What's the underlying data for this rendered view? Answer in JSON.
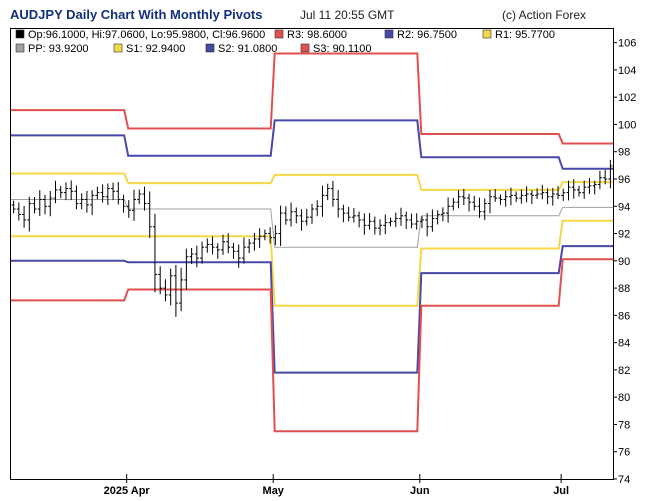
{
  "header": {
    "title": "AUDJPY Daily Chart With Monthly Pivots",
    "timestamp": "Jul 11 20:55 GMT",
    "credit": "(c) Action Forex"
  },
  "legend": [
    {
      "label": "Op:96.1000, Hi:97.0600, Lo:95.9800, Cl:96.9600",
      "color": "#000000"
    },
    {
      "label": "R3: 98.6000",
      "color": "#e05050"
    },
    {
      "label": "R2: 96.7500",
      "color": "#4848a8"
    },
    {
      "label": "R1: 95.7700",
      "color": "#f5d846"
    },
    {
      "label": "PP: 93.9200",
      "color": "#a0a0a0"
    },
    {
      "label": "S1: 92.9400",
      "color": "#f5d846"
    },
    {
      "label": "S2: 91.0800",
      "color": "#4848a8"
    },
    {
      "label": "S3: 90.1100",
      "color": "#e05050"
    }
  ],
  "chart_data": {
    "type": "line",
    "ylim": [
      74,
      107
    ],
    "y_ticks": [
      74,
      76,
      78,
      80,
      82,
      84,
      86,
      88,
      90,
      92,
      94,
      96,
      98,
      100,
      102,
      104,
      106
    ],
    "x_ticks": [
      {
        "label": "2025 Apr",
        "day": 22
      },
      {
        "label": "May",
        "day": 50
      },
      {
        "label": "Jun",
        "day": 78
      },
      {
        "label": "Jul",
        "day": 105
      }
    ],
    "x_range": [
      0,
      115
    ],
    "pivot_periods": [
      {
        "start": 0,
        "end": 22,
        "R3": 101.05,
        "R2": 99.2,
        "R1": 96.4,
        "PP": 94.5,
        "S1": 91.8,
        "S2": 90.0,
        "S3": 87.1
      },
      {
        "start": 22,
        "end": 50,
        "R3": 99.7,
        "R2": 97.7,
        "R1": 95.7,
        "PP": 93.8,
        "S1": 91.8,
        "S2": 89.9,
        "S3": 87.9
      },
      {
        "start": 50,
        "end": 78,
        "R3": 105.2,
        "R2": 100.3,
        "R1": 96.3,
        "PP": 91.0,
        "S1": 86.7,
        "S2": 81.8,
        "S3": 77.5
      },
      {
        "start": 78,
        "end": 105,
        "R3": 99.3,
        "R2": 97.6,
        "R1": 95.2,
        "PP": 93.3,
        "S1": 90.9,
        "S2": 89.1,
        "S3": 86.7
      },
      {
        "start": 105,
        "end": 115,
        "R3": 98.6,
        "R2": 96.75,
        "R1": 95.77,
        "PP": 93.92,
        "S1": 92.94,
        "S2": 91.08,
        "S3": 90.11
      }
    ],
    "closes": [
      93.8,
      93.4,
      93.0,
      94.2,
      93.8,
      94.5,
      94.0,
      94.6,
      95.2,
      95.0,
      95.3,
      95.1,
      94.2,
      94.5,
      94.1,
      94.8,
      95.0,
      94.7,
      95.3,
      95.1,
      94.5,
      94.0,
      93.7,
      94.5,
      94.9,
      94.2,
      92.5,
      89.0,
      88.0,
      87.5,
      88.9,
      86.9,
      88.6,
      90.3,
      90.5,
      90.2,
      91.0,
      91.2,
      91.0,
      90.8,
      91.4,
      91.0,
      90.7,
      90.2,
      91.0,
      91.3,
      91.6,
      91.8,
      92.0,
      91.7,
      92.0,
      93.5,
      93.0,
      93.6,
      93.3,
      92.9,
      93.2,
      93.8,
      94.0,
      94.8,
      95.3,
      94.5,
      93.8,
      93.5,
      93.2,
      93.3,
      93.0,
      92.6,
      92.9,
      92.4,
      92.6,
      92.8,
      92.9,
      93.1,
      93.3,
      93.0,
      92.7,
      92.9,
      93.0,
      92.5,
      93.1,
      93.4,
      93.5,
      94.0,
      94.3,
      94.7,
      94.6,
      94.3,
      94.0,
      93.6,
      94.2,
      94.7,
      94.6,
      94.5,
      94.7,
      94.8,
      94.6,
      94.8,
      94.9,
      94.8,
      94.9,
      95.0,
      94.7,
      94.9,
      94.8,
      95.0,
      95.4,
      95.2,
      95.0,
      95.4,
      95.5,
      95.6,
      96.1,
      96.0,
      96.96
    ]
  },
  "colors": {
    "border": "#000000",
    "r3": "#e05050",
    "r2": "#4848a8",
    "r1": "#f5d846",
    "pp": "#a0a0a0",
    "s1": "#f5d846",
    "s2": "#4848a8",
    "s3": "#e05050",
    "bars": "#000000"
  }
}
